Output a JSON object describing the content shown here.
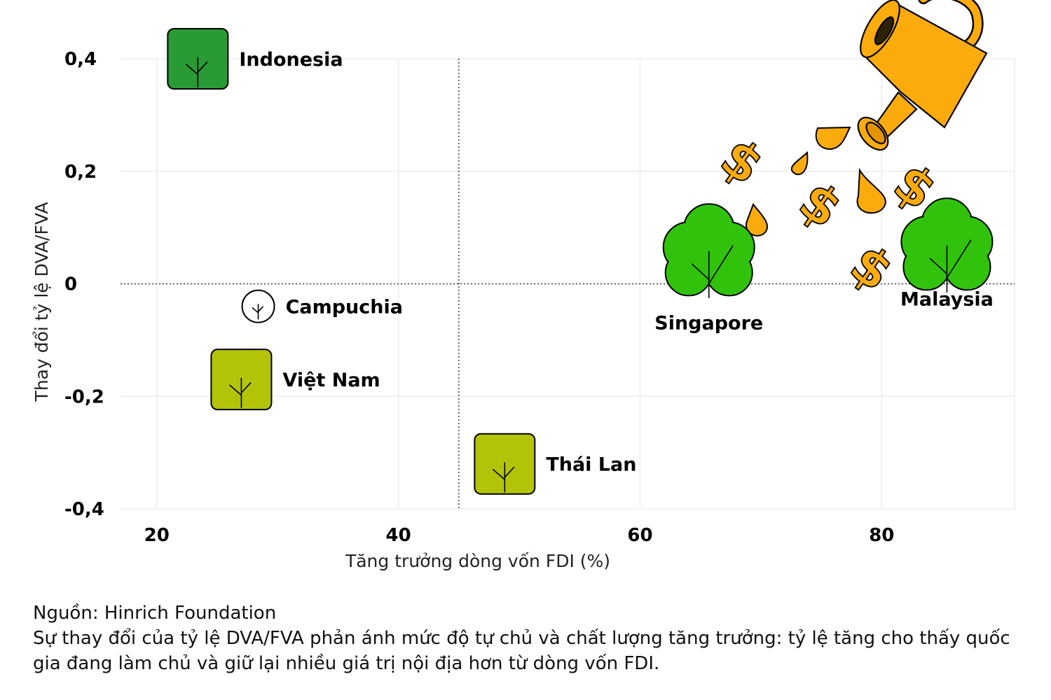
{
  "chart_data": {
    "type": "scatter",
    "xlabel": "Tăng trưởng dòng vốn FDI (%)",
    "ylabel": "Thay đổi tỷ lệ DVA/FVA",
    "xlim": [
      17,
      91
    ],
    "ylim": [
      -0.4,
      0.4
    ],
    "x_ticks": [
      "20",
      "40",
      "60",
      "80"
    ],
    "x_tick_values": [
      20,
      40,
      60,
      80
    ],
    "y_ticks": [
      "0,4",
      "0,2",
      "0",
      "-0,2",
      "-0,4"
    ],
    "y_tick_values": [
      0.4,
      0.2,
      0,
      -0.2,
      -0.4
    ],
    "reference_lines": {
      "x": 45,
      "y": 0
    },
    "grid": true,
    "points": [
      {
        "label": "Indonesia",
        "x": 23.4,
        "y": 0.4,
        "shape": "square",
        "color": "#2a9a35"
      },
      {
        "label": "Campuchia",
        "x": 28.4,
        "y": -0.04,
        "shape": "circle",
        "color": "#ffffff"
      },
      {
        "label": "Việt Nam",
        "x": 27.0,
        "y": -0.17,
        "shape": "square",
        "color": "#b3c408"
      },
      {
        "label": "Thái Lan",
        "x": 48.8,
        "y": -0.32,
        "shape": "square",
        "color": "#b3c408"
      },
      {
        "label": "Singapore",
        "x": 65.7,
        "y": 0.05,
        "shape": "tree",
        "color": "#31c30b"
      },
      {
        "label": "Malaysia",
        "x": 85.4,
        "y": 0.06,
        "shape": "tree",
        "color": "#31c30b"
      }
    ]
  },
  "decoration": {
    "can_color": "#fbab0c",
    "icons": [
      "watering-can-icon",
      "dollar-icon",
      "water-drop-icon"
    ]
  },
  "footer": {
    "source": "Nguồn: Hinrich Foundation",
    "note": "Sự thay đổi của tỷ lệ DVA/FVA phản ánh mức độ tự chủ và chất lượng tăng trưởng: tỷ lệ tăng cho thấy quốc gia đang làm chủ và giữ lại nhiều giá trị nội địa hơn từ dòng vốn FDI."
  }
}
